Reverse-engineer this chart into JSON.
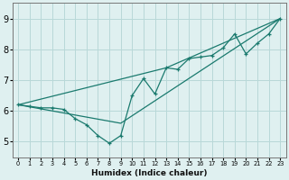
{
  "xlabel": "Humidex (Indice chaleur)",
  "xlim": [
    -0.5,
    23.5
  ],
  "ylim": [
    4.5,
    9.5
  ],
  "yticks": [
    5,
    6,
    7,
    8,
    9
  ],
  "xticks": [
    0,
    1,
    2,
    3,
    4,
    5,
    6,
    7,
    8,
    9,
    10,
    11,
    12,
    13,
    14,
    15,
    16,
    17,
    18,
    19,
    20,
    21,
    22,
    23
  ],
  "background_color": "#dff0f0",
  "grid_color": "#b8d8d8",
  "line_color": "#1a7a6e",
  "zigzag_x": [
    0,
    1,
    2,
    3,
    4,
    5,
    6,
    7,
    8,
    9,
    10,
    11,
    12,
    13,
    14,
    15,
    16,
    17,
    18,
    19,
    20,
    21,
    22,
    23
  ],
  "zigzag_y": [
    6.2,
    6.15,
    6.1,
    6.1,
    6.05,
    5.75,
    5.55,
    5.2,
    4.95,
    5.2,
    6.5,
    7.05,
    6.55,
    7.4,
    7.35,
    7.7,
    7.75,
    7.8,
    8.05,
    8.5,
    7.85,
    8.2,
    8.5,
    9.0
  ],
  "upper_line_x": [
    0,
    13,
    23
  ],
  "upper_line_y": [
    6.2,
    7.4,
    9.0
  ],
  "lower_line_x": [
    0,
    9,
    23
  ],
  "lower_line_y": [
    6.2,
    5.6,
    9.0
  ]
}
